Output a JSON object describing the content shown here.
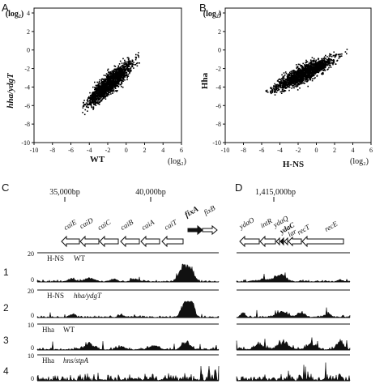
{
  "panels": {
    "A": {
      "letter": "A",
      "ylabel": "hha/ydgT",
      "ylabel_unit": "(log₂)",
      "xlabel": "WT",
      "xlabel_unit": "(log₂)",
      "xticks": [
        "-10",
        "-8",
        "-6",
        "-4",
        "-2",
        "0",
        "2",
        "4",
        "6"
      ],
      "yticks": [
        "4",
        "2",
        "0",
        "-2",
        "-4",
        "-6",
        "-8",
        "-10"
      ]
    },
    "B": {
      "letter": "B",
      "ylabel": "Hha",
      "ylabel_unit": "(log₂)",
      "xlabel": "H-NS",
      "xlabel_unit": "(log₂)",
      "xticks": [
        "-10",
        "-8",
        "-6",
        "-4",
        "-2",
        "0",
        "2",
        "4",
        "6"
      ],
      "yticks": [
        "4",
        "2",
        "0",
        "-2",
        "-4",
        "-6",
        "-8",
        "-10"
      ]
    },
    "C": {
      "letter": "C",
      "coords": [
        "35,000bp",
        "40,000bp"
      ],
      "genes": [
        "caiE",
        "caiD",
        "caiC",
        "caiB",
        "caiA",
        "caiT",
        "fixA",
        "fixB"
      ],
      "tracks": [
        {
          "num": "1",
          "ymax": "20",
          "ymin": "0",
          "label1": "H-NS",
          "label2": "WT"
        },
        {
          "num": "2",
          "ymax": "20",
          "ymin": "0",
          "label1": "H-NS",
          "label2": "hha/ydgT"
        },
        {
          "num": "3",
          "ymax": "10",
          "ymin": "0",
          "label1": "Hha",
          "label2": "WT"
        },
        {
          "num": "4",
          "ymax": "10",
          "ymin": "0",
          "label1": "Hha",
          "label2": "hns/stpA"
        }
      ]
    },
    "D": {
      "letter": "D",
      "coords": [
        "1,415,000bp"
      ],
      "genes": [
        "ydaO",
        "intR",
        "ydaQ",
        "ydaC",
        "lar",
        "recT",
        "recE"
      ]
    }
  }
}
